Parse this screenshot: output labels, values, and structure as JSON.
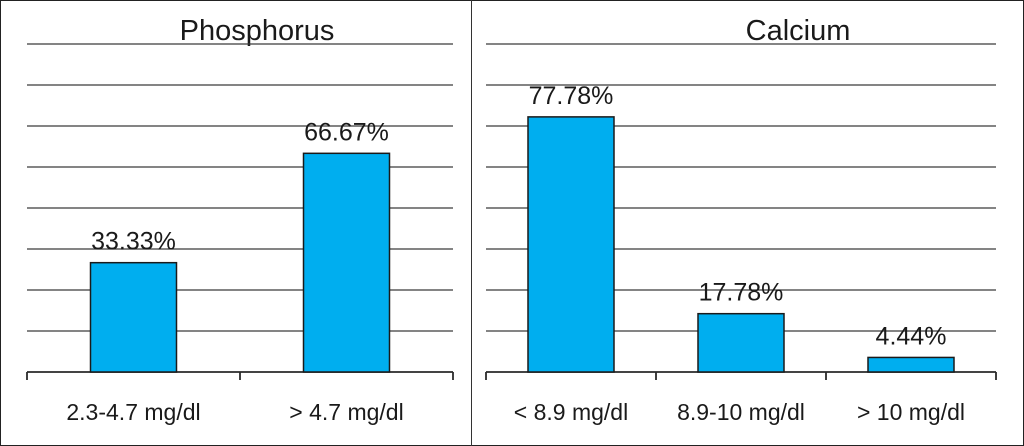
{
  "chart_data": [
    {
      "type": "bar",
      "title": "Phosphorus",
      "categories": [
        "2.3-4.7 mg/dl",
        "> 4.7 mg/dl"
      ],
      "values": [
        33.33,
        66.67
      ],
      "value_labels": [
        "33.33%",
        "66.67%"
      ],
      "ylim": [
        0,
        100
      ],
      "grid": true,
      "bar_color": "#00aeef"
    },
    {
      "type": "bar",
      "title": "Calcium",
      "categories": [
        "< 8.9 mg/dl",
        "8.9-10 mg/dl",
        "> 10 mg/dl"
      ],
      "values": [
        77.78,
        17.78,
        4.44
      ],
      "value_labels": [
        "77.78%",
        "17.78%",
        "4.44%"
      ],
      "ylim": [
        0,
        100
      ],
      "grid": true,
      "bar_color": "#00aeef"
    }
  ]
}
